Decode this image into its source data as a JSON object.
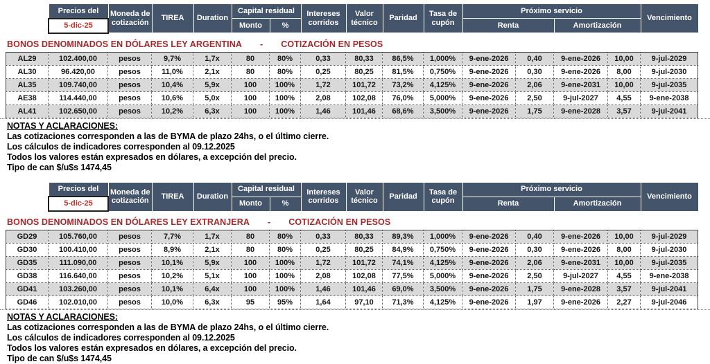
{
  "palette": {
    "header_bg": "#44546A",
    "header_text": "#FFFFFF",
    "date_text": "#C9302C",
    "title_text": "#A5282B",
    "row_stripe_bg": "#D9D9D9",
    "row_bg": "#FFFFFF"
  },
  "columns": [
    "ticker",
    "precio",
    "moneda_cotizacion",
    "tirea",
    "duration",
    "capital_residual_monto",
    "capital_residual_pct",
    "intereses_corridos",
    "valor_tecnico",
    "paridad",
    "tasa_cupon",
    "renta_fecha",
    "renta_monto",
    "amortizacion_fecha",
    "amortizacion_monto",
    "vencimiento"
  ],
  "header": {
    "precios_del": "Precios del",
    "fecha": "5-dic-25",
    "moneda": "Moneda de cotización",
    "tirea": "TIREA",
    "duration": "Duration",
    "capital_residual": "Capital residual",
    "monto": "Monto",
    "pct": "%",
    "intereses": "Intereses corridos",
    "valor_tecnico": "Valor técnico",
    "paridad": "Paridad",
    "tasa_cupon": "Tasa de cupón",
    "proximo_servicio": "Próximo servicio",
    "renta": "Renta",
    "amortizacion": "Amortización",
    "vencimiento": "Vencimiento"
  },
  "sections": [
    {
      "title_left": "BONOS DENOMINADOS EN DÓLARES LEY ARGENTINA",
      "title_dash": "-",
      "title_right": "COTIZACIÓN EN PESOS",
      "rows": [
        [
          "AL29",
          "102.400,00",
          "pesos",
          "9,7%",
          "1,7x",
          "80",
          "80%",
          "0,33",
          "80,33",
          "86,5%",
          "1,000%",
          "9-ene-2026",
          "0,40",
          "9-ene-2026",
          "10,00",
          "9-jul-2029"
        ],
        [
          "AL30",
          "96.420,00",
          "pesos",
          "11,0%",
          "2,1x",
          "80",
          "80%",
          "0,25",
          "80,25",
          "81,5%",
          "0,750%",
          "9-ene-2026",
          "0,30",
          "9-ene-2026",
          "8,00",
          "9-jul-2030"
        ],
        [
          "AL35",
          "109.740,00",
          "pesos",
          "10,4%",
          "5,9x",
          "100",
          "100%",
          "1,72",
          "101,72",
          "73,2%",
          "4,125%",
          "9-ene-2026",
          "2,06",
          "9-ene-2031",
          "10,00",
          "9-jul-2035"
        ],
        [
          "AE38",
          "114.440,00",
          "pesos",
          "10,6%",
          "5,0x",
          "100",
          "100%",
          "2,08",
          "102,08",
          "76,0%",
          "5,000%",
          "9-ene-2026",
          "2,50",
          "9-jul-2027",
          "4,55",
          "9-ene-2038"
        ],
        [
          "AL41",
          "102.650,00",
          "pesos",
          "10,2%",
          "6,3x",
          "100",
          "100%",
          "1,46",
          "101,46",
          "68,6%",
          "3,500%",
          "9-ene-2026",
          "1,75",
          "9-ene-2028",
          "3,57",
          "9-jul-2041"
        ]
      ]
    },
    {
      "title_left": "BONOS DENOMINADOS EN DÓLARES LEY EXTRANJERA",
      "title_dash": "-",
      "title_right": "COTIZACIÓN EN PESOS",
      "rows": [
        [
          "GD29",
          "105.760,00",
          "pesos",
          "7,7%",
          "1,7x",
          "80",
          "80%",
          "0,33",
          "80,33",
          "89,3%",
          "1,000%",
          "9-ene-2026",
          "0,40",
          "9-ene-2026",
          "10,00",
          "9-jul-2029"
        ],
        [
          "GD30",
          "100.410,00",
          "pesos",
          "8,9%",
          "2,1x",
          "80",
          "80%",
          "0,25",
          "80,25",
          "84,9%",
          "0,750%",
          "9-ene-2026",
          "0,30",
          "9-ene-2026",
          "8,00",
          "9-jul-2030"
        ],
        [
          "GD35",
          "111.090,00",
          "pesos",
          "10,1%",
          "5,9x",
          "100",
          "100%",
          "1,72",
          "101,72",
          "74,1%",
          "4,125%",
          "9-ene-2026",
          "2,06",
          "9-ene-2031",
          "10,00",
          "9-jul-2035"
        ],
        [
          "GD38",
          "116.640,00",
          "pesos",
          "10,2%",
          "5,1x",
          "100",
          "100%",
          "2,08",
          "102,08",
          "77,5%",
          "5,000%",
          "9-ene-2026",
          "2,50",
          "9-jul-2027",
          "4,55",
          "9-ene-2038"
        ],
        [
          "GD41",
          "103.260,00",
          "pesos",
          "10,1%",
          "6,4x",
          "100",
          "100%",
          "1,46",
          "101,46",
          "69,0%",
          "3,500%",
          "9-ene-2026",
          "1,75",
          "9-ene-2028",
          "3,57",
          "9-jul-2041"
        ],
        [
          "GD46",
          "102.010,00",
          "pesos",
          "10,0%",
          "6,3x",
          "95",
          "95%",
          "1,64",
          "97,10",
          "71,3%",
          "4,125%",
          "9-ene-2026",
          "1,97",
          "9-ene-2026",
          "2,27",
          "9-jul-2046"
        ]
      ]
    }
  ],
  "notes": {
    "heading": "NOTAS Y ACLARACIONES:",
    "lines": [
      "Las cotizaciones corresponden a las de BYMA de plazo 24hs, o el último cierre.",
      "Los cálculos de indicadores corresponden al 09.12.2025",
      "Todos los valores están expresados en dólares, a excepción del precio.",
      "Tipo de can $/u$s 1474,45"
    ]
  }
}
